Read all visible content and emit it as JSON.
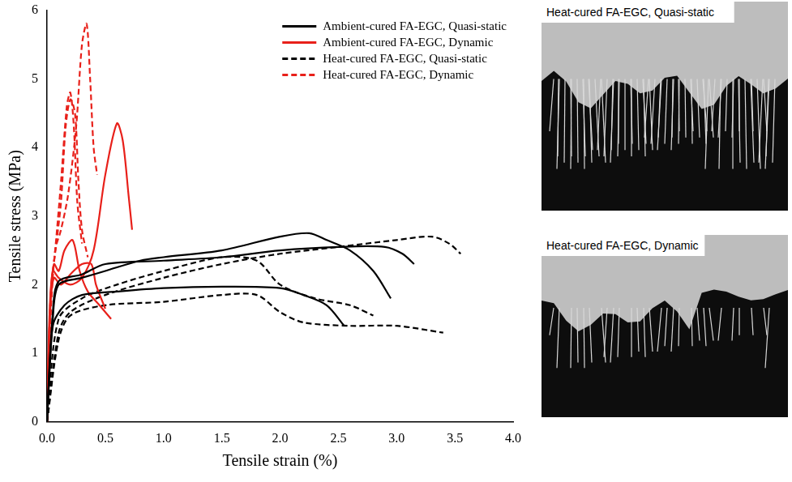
{
  "chart_data": {
    "type": "line",
    "x_label": "Tensile strain (%)",
    "y_label": "Tensile stress (MPa)",
    "xlim": [
      0,
      4.0
    ],
    "ylim": [
      0,
      6
    ],
    "xticks": [
      {
        "value": 0,
        "label": "0.0"
      },
      {
        "value": 0.5,
        "label": "0.5"
      },
      {
        "value": 1,
        "label": "1.0"
      },
      {
        "value": 1.5,
        "label": "1.5"
      },
      {
        "value": 2,
        "label": "2.0"
      },
      {
        "value": 2.5,
        "label": "2.5"
      },
      {
        "value": 3,
        "label": "3.0"
      },
      {
        "value": 3.5,
        "label": "3.5"
      },
      {
        "value": 4,
        "label": "4.0"
      }
    ],
    "yticks": [
      0,
      1,
      2,
      3,
      4,
      5,
      6
    ],
    "grid": false,
    "legend": "top-right",
    "series": [
      {
        "name": "Ambient-cured FA-EGC, Quasi-static",
        "color": "#000000",
        "line_style": "solid",
        "curves": [
          {
            "x": [
              0,
              0.05,
              0.1,
              0.3,
              0.5,
              0.8,
              1.0,
              1.5,
              2.0,
              2.25,
              2.4,
              2.6,
              2.8,
              2.95
            ],
            "values": [
              0,
              1.5,
              2.0,
              2.1,
              2.2,
              2.35,
              2.4,
              2.5,
              2.7,
              2.75,
              2.65,
              2.5,
              2.2,
              1.8
            ]
          },
          {
            "x": [
              0,
              0.05,
              0.1,
              0.3,
              0.5,
              1.0,
              1.5,
              2.0,
              2.5,
              2.9,
              3.05,
              3.15
            ],
            "values": [
              0,
              1.6,
              2.05,
              2.15,
              2.3,
              2.35,
              2.4,
              2.5,
              2.55,
              2.55,
              2.45,
              2.3
            ]
          },
          {
            "x": [
              0,
              0.05,
              0.15,
              0.3,
              0.6,
              1.0,
              1.5,
              2.0,
              2.2,
              2.4,
              2.55
            ],
            "values": [
              0,
              1.4,
              1.7,
              1.85,
              1.9,
              1.95,
              1.97,
              1.95,
              1.85,
              1.7,
              1.4
            ]
          }
        ]
      },
      {
        "name": "Ambient-cured FA-EGC, Dynamic",
        "color": "#e8201a",
        "line_style": "solid",
        "curves": [
          {
            "x": [
              0,
              0.02,
              0.05,
              0.1,
              0.2,
              0.3,
              0.4,
              0.5,
              0.6,
              0.65,
              0.7,
              0.73
            ],
            "values": [
              0,
              1.5,
              2.2,
              2.1,
              2.0,
              2.1,
              2.5,
              3.6,
              4.35,
              4.1,
              3.3,
              2.8
            ]
          },
          {
            "x": [
              0,
              0.03,
              0.06,
              0.1,
              0.15,
              0.22,
              0.28,
              0.35,
              0.45,
              0.55
            ],
            "values": [
              0,
              1.8,
              2.3,
              2.2,
              2.5,
              2.65,
              2.2,
              1.9,
              1.7,
              1.5
            ]
          },
          {
            "x": [
              0,
              0.03,
              0.06,
              0.12,
              0.2,
              0.3,
              0.38,
              0.42,
              0.5
            ],
            "values": [
              0,
              1.7,
              2.1,
              2.0,
              2.15,
              2.3,
              2.3,
              2.0,
              1.65
            ]
          }
        ]
      },
      {
        "name": "Heat-cured FA-EGC, Quasi-static",
        "color": "#000000",
        "line_style": "dashed",
        "curves": [
          {
            "x": [
              0,
              0.1,
              0.2,
              0.5,
              1.0,
              1.5,
              2.0,
              2.5,
              3.0,
              3.3,
              3.45,
              3.55
            ],
            "values": [
              0,
              1.3,
              1.6,
              1.85,
              2.1,
              2.3,
              2.45,
              2.55,
              2.65,
              2.7,
              2.6,
              2.45
            ]
          },
          {
            "x": [
              0,
              0.1,
              0.2,
              0.5,
              1.0,
              1.5,
              1.8,
              2.0,
              2.2,
              2.6,
              3.0,
              3.4
            ],
            "values": [
              0,
              1.2,
              1.55,
              1.7,
              1.75,
              1.85,
              1.85,
              1.6,
              1.45,
              1.4,
              1.4,
              1.3
            ]
          },
          {
            "x": [
              0,
              0.1,
              0.3,
              0.6,
              1.0,
              1.5,
              1.8,
              2.0,
              2.3,
              2.6,
              2.8
            ],
            "values": [
              0,
              1.5,
              1.8,
              2.0,
              2.2,
              2.4,
              2.35,
              2.0,
              1.8,
              1.7,
              1.55
            ]
          }
        ]
      },
      {
        "name": "Heat-cured FA-EGC, Dynamic",
        "color": "#e8201a",
        "line_style": "dashed",
        "curves": [
          {
            "x": [
              0,
              0.03,
              0.07,
              0.12,
              0.18,
              0.25,
              0.3,
              0.34,
              0.37,
              0.4,
              0.43
            ],
            "values": [
              0,
              1.5,
              2.5,
              2.8,
              3.3,
              4.3,
              5.5,
              5.8,
              5.0,
              4.0,
              3.6
            ]
          },
          {
            "x": [
              0,
              0.03,
              0.07,
              0.12,
              0.17,
              0.2,
              0.23,
              0.26,
              0.3
            ],
            "values": [
              0,
              1.8,
              2.5,
              3.5,
              4.6,
              4.8,
              4.3,
              3.2,
              2.6
            ]
          },
          {
            "x": [
              0,
              0.04,
              0.08,
              0.12,
              0.16,
              0.2,
              0.24,
              0.27,
              0.3,
              0.35
            ],
            "values": [
              0,
              2.0,
              2.6,
              3.2,
              4.3,
              4.7,
              4.5,
              3.5,
              2.8,
              2.4
            ]
          }
        ]
      }
    ]
  },
  "images": [
    {
      "label": "Heat-cured FA-EGC, Quasi-static"
    },
    {
      "label": "Heat-cured FA-EGC, Dynamic"
    }
  ]
}
